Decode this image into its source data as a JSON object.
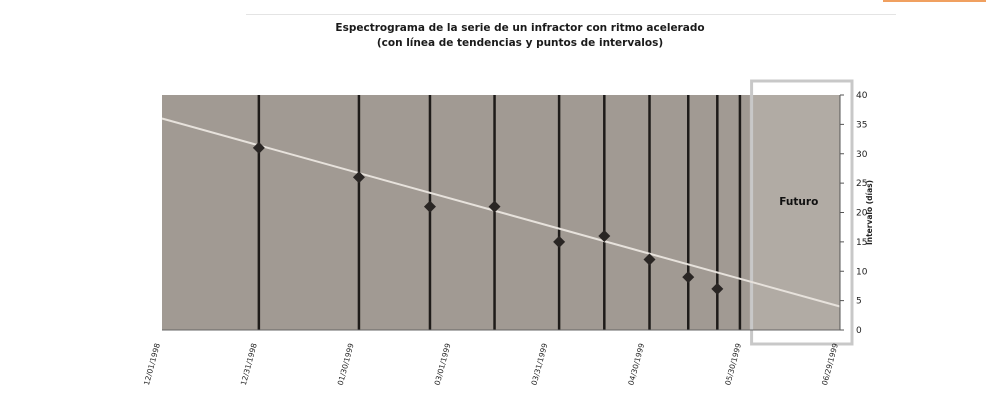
{
  "chart_data": {
    "type": "scatter",
    "title": "Espectrograma de la serie de un infractor con ritmo acelerado",
    "subtitle": "(con línea de tendencias y puntos de intervalos)",
    "ylabel": "Intervalo (días)",
    "ylim": [
      0,
      40
    ],
    "yticks": [
      0,
      5,
      10,
      15,
      20,
      25,
      30,
      35,
      40
    ],
    "x_tick_labels": [
      "12/01/1998",
      "12/31/1998",
      "01/30/1999",
      "03/01/1999",
      "03/31/1999",
      "04/30/1999",
      "05/30/1999",
      "06/29/1999"
    ],
    "xlim": [
      "1998-12-01",
      "1999-06-29"
    ],
    "event_dates": [
      "1998-12-31",
      "1999-01-31",
      "1999-02-22",
      "1999-03-14",
      "1999-04-03",
      "1999-04-17",
      "1999-05-01",
      "1999-05-13",
      "1999-05-22",
      "1999-05-29"
    ],
    "points": [
      {
        "x": "1998-12-31",
        "y": 31
      },
      {
        "x": "1999-01-31",
        "y": 26
      },
      {
        "x": "1999-02-22",
        "y": 21
      },
      {
        "x": "1999-03-14",
        "y": 21
      },
      {
        "x": "1999-04-03",
        "y": 15
      },
      {
        "x": "1999-04-17",
        "y": 16
      },
      {
        "x": "1999-05-01",
        "y": 12
      },
      {
        "x": "1999-05-13",
        "y": 9
      },
      {
        "x": "1999-05-22",
        "y": 7
      }
    ],
    "trendline": [
      {
        "x": "1998-12-01",
        "y": 36
      },
      {
        "x": "1999-06-29",
        "y": 4
      }
    ],
    "future_region": {
      "label": "Futuro",
      "start": "1999-06-01",
      "end": "1999-06-29"
    },
    "grid": false,
    "colors": {
      "plot_bg": "#a19a93",
      "event_line": "#1e1b19",
      "trend": "#e7e2dc",
      "marker": "#2a2624",
      "future_box": "#c8c8c8"
    }
  }
}
